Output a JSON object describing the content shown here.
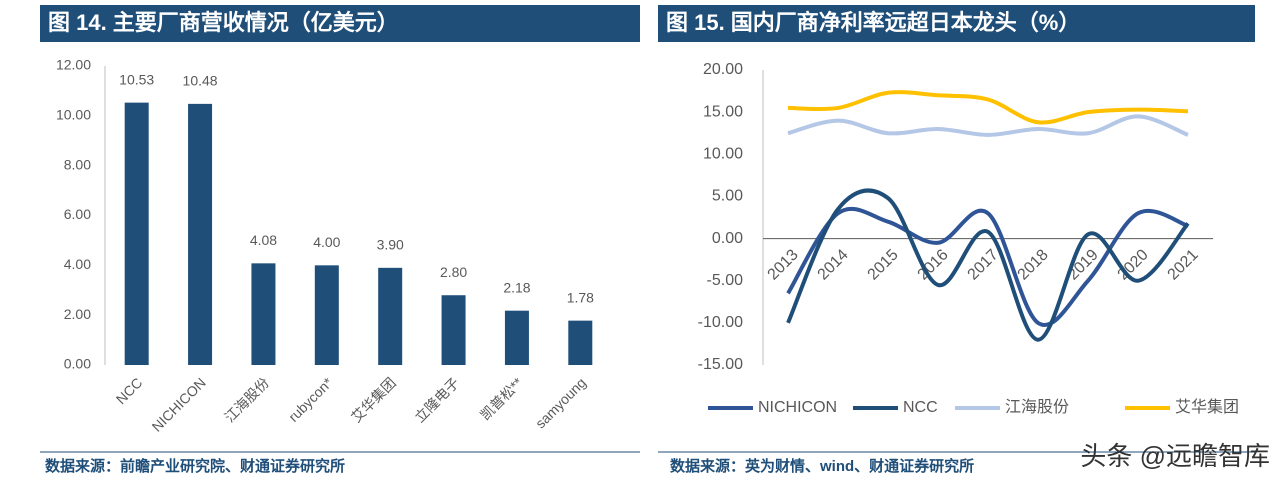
{
  "chart_data": [
    {
      "type": "bar",
      "title": "图 14. 主要厂商营收情况（亿美元）",
      "source": "数据来源：前瞻产业研究院、财通证券研究所",
      "categories": [
        "NCC",
        "NICHICON",
        "江海股份",
        "rubycon*",
        "艾华集团",
        "立隆电子",
        "凯普松**",
        "samyoung"
      ],
      "values": [
        10.53,
        10.48,
        4.08,
        4.0,
        3.9,
        2.8,
        2.18,
        1.78
      ],
      "value_labels": [
        "10.53",
        "10.48",
        "4.08",
        "4.00",
        "3.90",
        "2.80",
        "2.18",
        "1.78"
      ],
      "color": "#1f4e79",
      "ylim": [
        0,
        12
      ],
      "yticks": [
        {
          "value": 0,
          "label": "0.00"
        },
        {
          "value": 2,
          "label": "2.00"
        },
        {
          "value": 4,
          "label": "4.00"
        },
        {
          "value": 6,
          "label": "6.00"
        },
        {
          "value": 8,
          "label": "8.00"
        },
        {
          "value": 10,
          "label": "10.00"
        },
        {
          "value": 12,
          "label": "12.00"
        }
      ]
    },
    {
      "type": "line",
      "title": "图 15. 国内厂商净利率远超日本龙头（%）",
      "source": "数据来源：英为财情、wind、财通证券研究所",
      "categories": [
        "2013",
        "2014",
        "2015",
        "2016",
        "2017",
        "2018",
        "2019",
        "2020",
        "2021"
      ],
      "series": [
        {
          "name": "NICHICON",
          "color": "#2f5597",
          "values": [
            -6.5,
            3.0,
            2.0,
            -0.5,
            3.0,
            -10.0,
            -5.0,
            3.0,
            1.5
          ]
        },
        {
          "name": "NCC",
          "color": "#1f4e79",
          "values": [
            -10.0,
            3.5,
            4.8,
            -5.5,
            0.8,
            -12.0,
            0.5,
            -5.0,
            1.8
          ]
        },
        {
          "name": "江海股份",
          "color": "#b4c7e7",
          "values": [
            12.5,
            14.0,
            12.5,
            13.0,
            12.3,
            13.0,
            12.5,
            14.5,
            12.3
          ]
        },
        {
          "name": "艾华集团",
          "color": "#ffc000",
          "values": [
            15.5,
            15.5,
            17.3,
            17.0,
            16.5,
            13.8,
            15.0,
            15.3,
            15.1
          ]
        }
      ],
      "ylim": [
        -15,
        20
      ],
      "yticks": [
        {
          "value": -15,
          "label": "-15.00"
        },
        {
          "value": -10,
          "label": "-10.00"
        },
        {
          "value": -5,
          "label": "-5.00"
        },
        {
          "value": 0,
          "label": "0.00"
        },
        {
          "value": 5,
          "label": "5.00"
        },
        {
          "value": 10,
          "label": "10.00"
        },
        {
          "value": 15,
          "label": "15.00"
        },
        {
          "value": 20,
          "label": "20.00"
        }
      ],
      "legend": "bottom"
    }
  ],
  "watermark": "头条 @远瞻智库"
}
